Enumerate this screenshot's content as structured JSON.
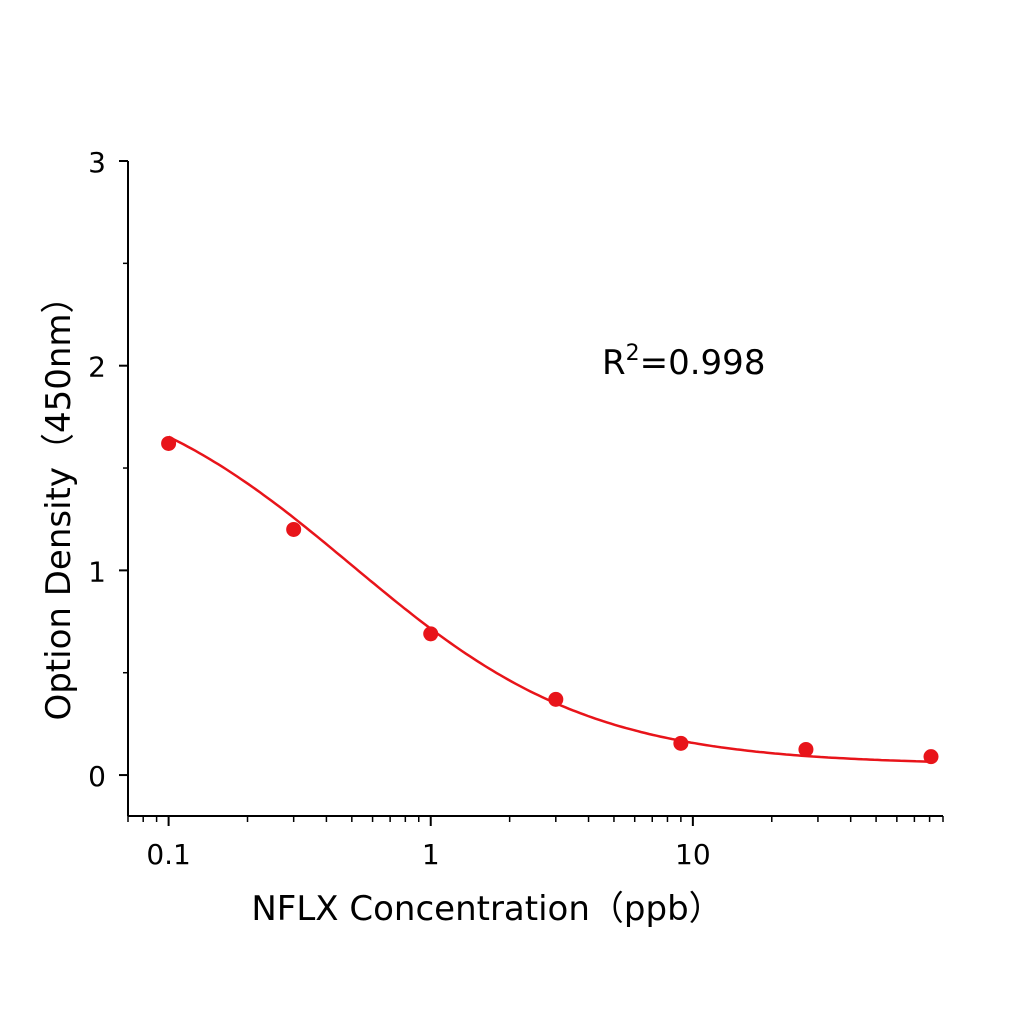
{
  "chart_data": {
    "type": "scatter",
    "title": "",
    "xlabel": "NFLX  Concentration（ppb）",
    "ylabel": "Option Density（450nm）",
    "x_scale": "log",
    "xlim": [
      0.07,
      90
    ],
    "ylim": [
      -0.2,
      3
    ],
    "x_ticks": [
      0.1,
      1,
      10
    ],
    "x_tick_labels": [
      "0.1",
      "1",
      "10"
    ],
    "y_ticks": [
      0,
      1,
      2,
      3
    ],
    "y_tick_labels": [
      "0",
      "1",
      "2",
      "3"
    ],
    "grid": false,
    "annotation": {
      "base": "R",
      "sup": "2",
      "rest": "=0.998"
    },
    "series": [
      {
        "x": [
          0.1,
          0.3,
          1,
          3,
          9,
          27,
          81
        ],
        "y": [
          1.62,
          1.2,
          0.69,
          0.37,
          0.155,
          0.125,
          0.09
        ],
        "fit": "four-parameter logistic",
        "color": "#e8141a"
      }
    ]
  }
}
